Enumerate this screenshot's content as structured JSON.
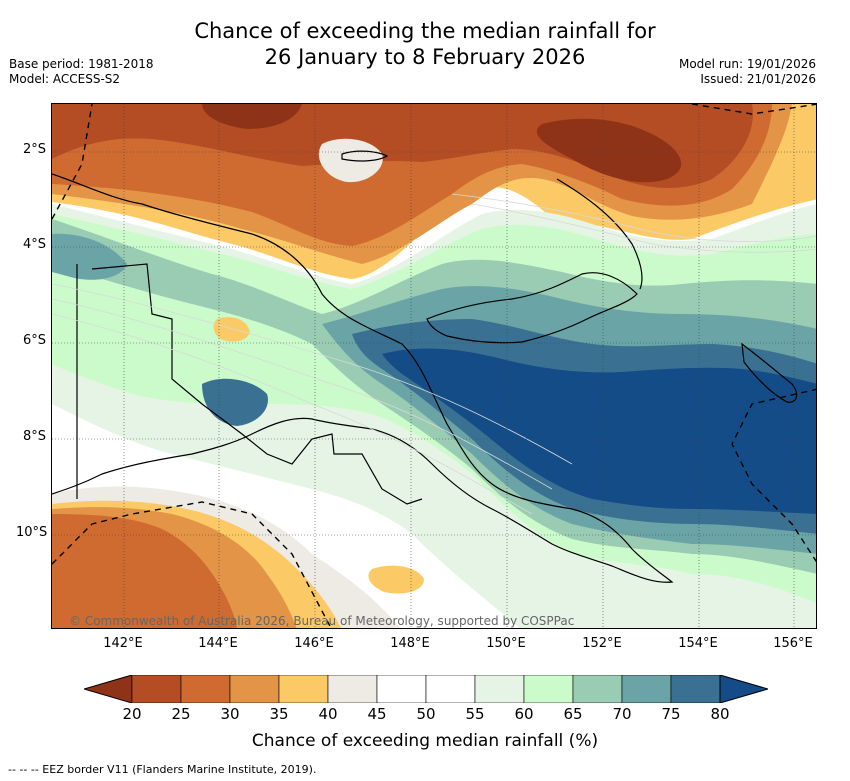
{
  "title": {
    "line1": "Chance of exceeding the median rainfall for",
    "line2": "26 January to 8 February 2026"
  },
  "meta_left": {
    "base_period": "Base period: 1981-2018",
    "model": "Model: ACCESS-S2"
  },
  "meta_right": {
    "model_run": "Model run: 19/01/2026",
    "issued": "Issued: 21/01/2026"
  },
  "map": {
    "lat_labels": [
      "2°S",
      "4°S",
      "6°S",
      "8°S",
      "10°S"
    ],
    "lon_labels": [
      "142°E",
      "144°E",
      "146°E",
      "148°E",
      "150°E",
      "152°E",
      "154°E",
      "156°E"
    ],
    "copyright": "© Commonwealth of Australia 2026, Bureau of Meteorology, supported by COSPPac"
  },
  "colorbar": {
    "ticks": [
      "20",
      "25",
      "30",
      "35",
      "40",
      "45",
      "50",
      "55",
      "60",
      "65",
      "70",
      "75",
      "80"
    ],
    "colors": {
      "lt20": "#8f3318",
      "b20_25": "#b44d24",
      "b25_30": "#cf6b30",
      "b30_35": "#e39447",
      "b35_40": "#fbca66",
      "b40_45": "#eeebe5",
      "b45_50": "#ffffff",
      "b50_55": "#ffffff",
      "b55_60": "#e6f4e6",
      "b60_65": "#cbfbcb",
      "b65_70": "#99ccb3",
      "b70_75": "#6aa4a7",
      "b75_80": "#3a7193",
      "gt80": "#134c86"
    },
    "label": "Chance of exceeding median rainfall (%)"
  },
  "footnote": "--  --  -- EEZ border V11 (Flanders Marine Institute, 2019)."
}
